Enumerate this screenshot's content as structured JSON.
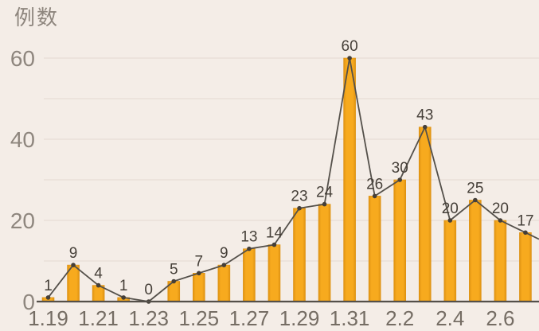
{
  "chart_data": {
    "type": "bar",
    "line_overlay": true,
    "title": "",
    "ylabel": "例数",
    "xlabel": "",
    "values": [
      1,
      9,
      4,
      1,
      0,
      5,
      7,
      9,
      13,
      14,
      23,
      24,
      60,
      26,
      30,
      43,
      20,
      25,
      20,
      17
    ],
    "value_labels_shown": true,
    "x_tick_labels": [
      "1.19",
      "1.21",
      "1.23",
      "1.25",
      "1.27",
      "1.29",
      "1.31",
      "2.2",
      "2.4",
      "2.6"
    ],
    "x_tick_every": 2,
    "y_ticks": [
      0,
      20,
      40,
      60
    ],
    "ylim": [
      0,
      60
    ],
    "grid_step": 10,
    "grid": "on",
    "legend_position": "none"
  },
  "colors": {
    "background": "#f4ede7",
    "bar_fill": "#f7aa1e",
    "bar_edge": "#de9212",
    "line": "#54504a",
    "marker": "#453f38",
    "grid": "#e9e0d9",
    "axis": "#54504a",
    "value_label": "#453f38",
    "x_tick_label": "#756d64",
    "y_tick_label": "#8e867e"
  }
}
